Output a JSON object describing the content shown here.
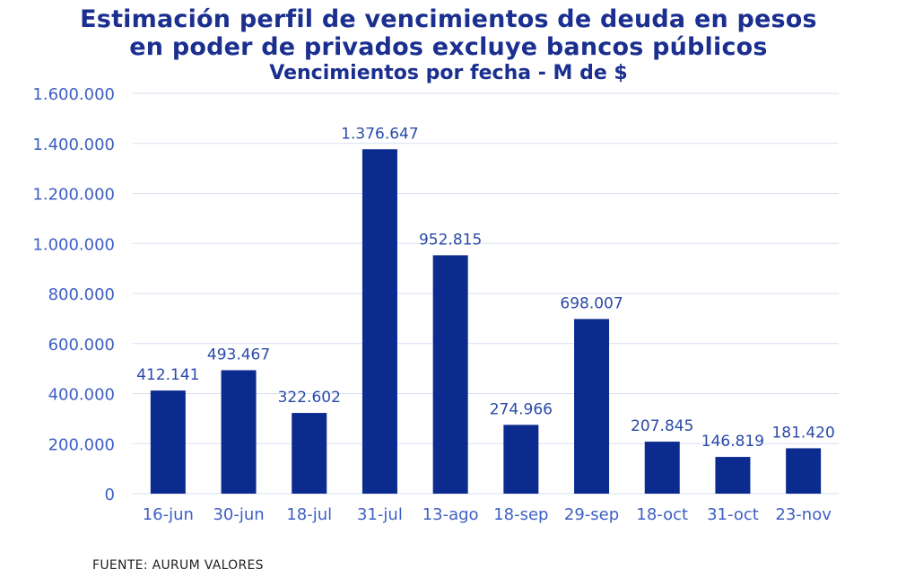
{
  "header": {
    "title_line1": "Estimación perfil de vencimientos de deuda en pesos",
    "title_line2": "en poder de privados excluye bancos públicos",
    "subtitle": "Vencimientos por fecha - M de $"
  },
  "footer": {
    "source": "FUENTE: AURUM VALORES"
  },
  "colors": {
    "bar": "#0b2b8e",
    "title": "#1a2f8f",
    "axis_text": "#3d5fc4",
    "label_text": "#2a4aa8",
    "grid": "#d6dff0"
  },
  "chart_data": {
    "type": "bar",
    "title": "Estimación perfil de vencimientos de deuda en pesos en poder de privados excluye bancos públicos",
    "subtitle": "Vencimientos por fecha - M de $",
    "xlabel": "",
    "ylabel": "",
    "categories": [
      "16-jun",
      "30-jun",
      "18-jul",
      "31-jul",
      "13-ago",
      "18-sep",
      "29-sep",
      "18-oct",
      "31-oct",
      "23-nov"
    ],
    "values": [
      412141,
      493467,
      322602,
      1376647,
      952815,
      274966,
      698007,
      207845,
      146819,
      181420
    ],
    "value_labels": [
      "412.141",
      "493.467",
      "322.602",
      "1.376.647",
      "952.815",
      "274.966",
      "698.007",
      "207.845",
      "146.819",
      "181.420"
    ],
    "ylim": [
      0,
      1600000
    ],
    "yticks": [
      0,
      200000,
      400000,
      600000,
      800000,
      1000000,
      1200000,
      1400000,
      1600000
    ],
    "ytick_labels": [
      "0",
      "200.000",
      "400.000",
      "600.000",
      "800.000",
      "1.000.000",
      "1.200.000",
      "1.400.000",
      "1.600.000"
    ],
    "grid": true,
    "legend": "none"
  }
}
